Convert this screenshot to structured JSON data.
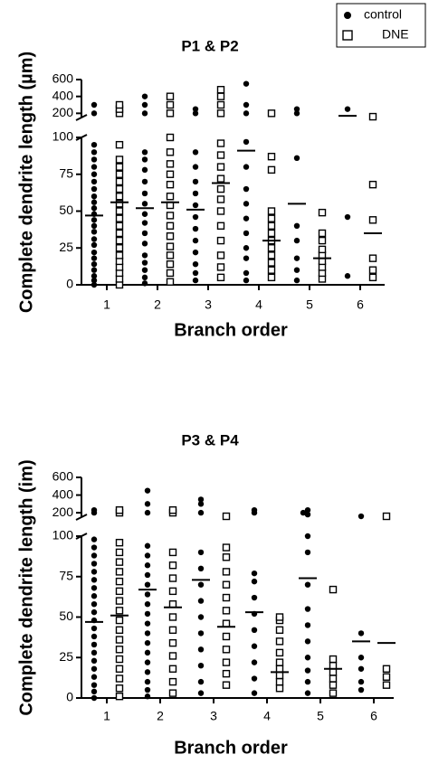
{
  "chart_data": [
    {
      "type": "dot-plot",
      "title": "P1 & P2",
      "y_label": "Complete dendrite length (µm)",
      "x_label": "Branch order",
      "categories": [
        "1",
        "2",
        "3",
        "4",
        "5",
        "6"
      ],
      "legend": "upper right",
      "ylim": [
        0,
        100
      ],
      "yticks": [
        0,
        25,
        50,
        75,
        100
      ],
      "y_upper_lim": [
        150,
        600
      ],
      "y_upper_ticks": [
        200,
        400,
        600
      ],
      "series": [
        {
          "name": "control",
          "color": "#000000",
          "marker": "filled-circle",
          "means": [
            47,
            52,
            51,
            91,
            55,
            170
          ],
          "values": [
            [
              0,
              3,
              6,
              10,
              14,
              18,
              22,
              27,
              31,
              36,
              40,
              44,
              48,
              52,
              56,
              60,
              65,
              70,
              75,
              80,
              85,
              90,
              95,
              200,
              300
            ],
            [
              1,
              5,
              10,
              15,
              20,
              28,
              35,
              42,
              48,
              55,
              62,
              70,
              78,
              85,
              90,
              200,
              300,
              400
            ],
            [
              3,
              8,
              14,
              22,
              30,
              38,
              46,
              54,
              62,
              70,
              80,
              90,
              200,
              250
            ],
            [
              3,
              8,
              18,
              25,
              35,
              45,
              55,
              65,
              80,
              97,
              200,
              300,
              550
            ],
            [
              3,
              10,
              18,
              30,
              40,
              86,
              200,
              250
            ],
            [
              6,
              46,
              250
            ]
          ]
        },
        {
          "name": "DNE",
          "color": "#000000",
          "marker": "open-square",
          "means": [
            56,
            56,
            69,
            30,
            18,
            35
          ],
          "values": [
            [
              0,
              4,
              8,
              12,
              16,
              20,
              25,
              30,
              35,
              40,
              45,
              50,
              55,
              60,
              65,
              70,
              75,
              80,
              85,
              95,
              200,
              250,
              300
            ],
            [
              2,
              8,
              14,
              20,
              26,
              33,
              40,
              47,
              54,
              60,
              68,
              75,
              82,
              90,
              100,
              200,
              300,
              400
            ],
            [
              5,
              12,
              20,
              30,
              40,
              50,
              58,
              65,
              72,
              80,
              88,
              96,
              200,
              300,
              400,
              480
            ],
            [
              5,
              10,
              15,
              20,
              25,
              30,
              35,
              40,
              45,
              50,
              78,
              87,
              200
            ],
            [
              4,
              8,
              12,
              16,
              20,
              24,
              30,
              35,
              49
            ],
            [
              5,
              10,
              18,
              44,
              68,
              160
            ]
          ]
        }
      ]
    },
    {
      "type": "dot-plot",
      "title": "P3 & P4",
      "y_label": "Complete dendrite length (im)",
      "x_label": "Branch order",
      "categories": [
        "1",
        "2",
        "3",
        "4",
        "5",
        "6"
      ],
      "ylim": [
        0,
        100
      ],
      "yticks": [
        0,
        25,
        50,
        75,
        100
      ],
      "y_upper_lim": [
        150,
        600
      ],
      "y_upper_ticks": [
        200,
        400,
        600
      ],
      "series": [
        {
          "color": "#000000",
          "marker": "filled-circle",
          "means": [
            47,
            67,
            73,
            53,
            74,
            35
          ],
          "values": [
            [
              0,
              4,
              8,
              13,
              18,
              23,
              28,
              33,
              38,
              43,
              48,
              53,
              58,
              63,
              68,
              73,
              78,
              83,
              88,
              93,
              98,
              200,
              230
            ],
            [
              1,
              5,
              10,
              16,
              22,
              28,
              34,
              40,
              46,
              52,
              58,
              64,
              70,
              76,
              82,
              88,
              94,
              200,
              300,
              450
            ],
            [
              3,
              10,
              20,
              30,
              40,
              50,
              60,
              70,
              80,
              90,
              200,
              300,
              350
            ],
            [
              3,
              12,
              22,
              32,
              42,
              52,
              62,
              72,
              77,
              200,
              230
            ],
            [
              3,
              10,
              17,
              25,
              35,
              45,
              55,
              70,
              90,
              100,
              180,
              200,
              230
            ],
            [
              5,
              10,
              18,
              25,
              40,
              160
            ]
          ]
        },
        {
          "color": "#000000",
          "marker": "open-square",
          "means": [
            51,
            56,
            44,
            16,
            18,
            34
          ],
          "values": [
            [
              1,
              6,
              12,
              18,
              24,
              30,
              36,
              42,
              48,
              54,
              60,
              66,
              72,
              78,
              84,
              90,
              96,
              200,
              230
            ],
            [
              3,
              10,
              18,
              26,
              34,
              42,
              50,
              58,
              66,
              74,
              82,
              90,
              200,
              230
            ],
            [
              8,
              15,
              22,
              30,
              38,
              46,
              54,
              62,
              70,
              78,
              87,
              93,
              160
            ],
            [
              6,
              10,
              14,
              18,
              22,
              28,
              35,
              42,
              48,
              50
            ],
            [
              3,
              8,
              12,
              16,
              20,
              24,
              67
            ],
            [
              8,
              13,
              18,
              160
            ]
          ]
        }
      ]
    }
  ]
}
